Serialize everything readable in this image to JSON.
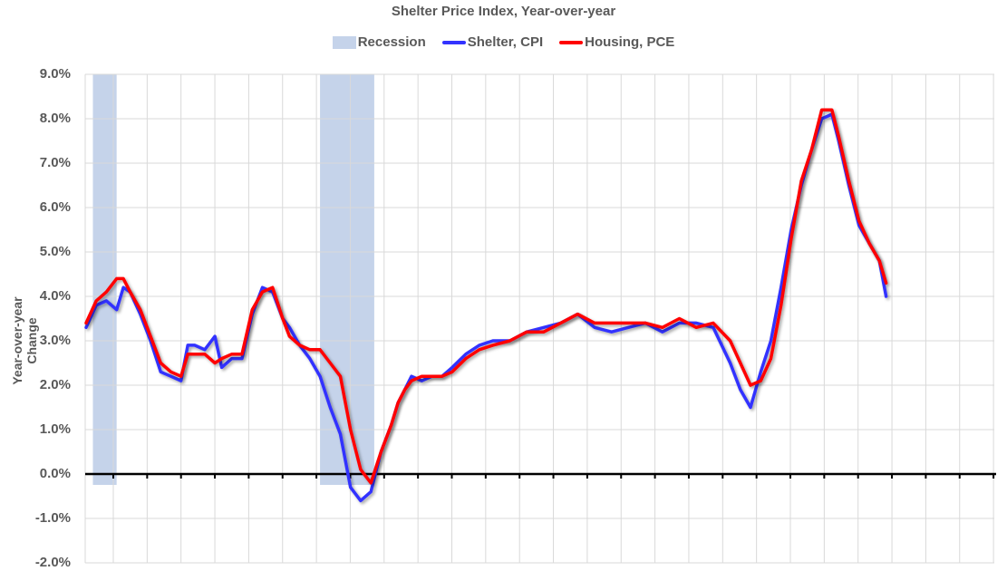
{
  "chart_data": {
    "type": "line",
    "title": "Shelter Price Index, Year-over-year",
    "xlabel": "",
    "ylabel": "Year-over-year Change",
    "ylim": [
      -2.0,
      9.0
    ],
    "yticks": [
      "9.0%",
      "8.0%",
      "7.0%",
      "6.0%",
      "5.0%",
      "4.0%",
      "3.0%",
      "2.0%",
      "1.0%",
      "0.0%",
      "-1.0%",
      "-2.0%"
    ],
    "grid": true,
    "legend_position": "top",
    "legend": [
      "Recession",
      "Shelter, CPI",
      "Housing, PCE"
    ],
    "x_unit": "approximate year (no x tick labels shown)",
    "recessions": [
      {
        "start": 2001.2,
        "end": 2001.9
      },
      {
        "start": 2007.9,
        "end": 2009.5
      }
    ],
    "series": [
      {
        "name": "Shelter, CPI",
        "color": "#3333ff",
        "x": [
          2001.0,
          2001.3,
          2001.6,
          2001.9,
          2002.1,
          2002.3,
          2002.6,
          2002.9,
          2003.2,
          2003.5,
          2003.8,
          2004.0,
          2004.2,
          2004.5,
          2004.8,
          2005.0,
          2005.3,
          2005.6,
          2005.9,
          2006.2,
          2006.5,
          2006.8,
          2007.0,
          2007.3,
          2007.6,
          2007.9,
          2008.2,
          2008.5,
          2008.8,
          2009.1,
          2009.4,
          2009.7,
          2010.0,
          2010.2,
          2010.4,
          2010.6,
          2010.9,
          2011.2,
          2011.5,
          2011.8,
          2012.2,
          2012.6,
          2013.0,
          2013.5,
          2014.0,
          2014.5,
          2015.0,
          2015.5,
          2016.0,
          2016.5,
          2017.0,
          2017.5,
          2018.0,
          2018.5,
          2019.0,
          2019.5,
          2020.0,
          2020.3,
          2020.6,
          2020.9,
          2021.2,
          2021.5,
          2021.8,
          2022.1,
          2022.4,
          2022.7,
          2023.0,
          2023.2,
          2023.5,
          2023.8,
          2024.1,
          2024.4,
          2024.6
        ],
        "values": [
          3.3,
          3.8,
          3.9,
          3.7,
          4.2,
          4.1,
          3.6,
          3.0,
          2.3,
          2.2,
          2.1,
          2.9,
          2.9,
          2.8,
          3.1,
          2.4,
          2.6,
          2.6,
          3.6,
          4.2,
          4.1,
          3.5,
          3.3,
          2.9,
          2.6,
          2.2,
          1.5,
          0.9,
          -0.3,
          -0.6,
          -0.4,
          0.5,
          1.1,
          1.6,
          1.9,
          2.2,
          2.1,
          2.2,
          2.2,
          2.4,
          2.7,
          2.9,
          3.0,
          3.0,
          3.2,
          3.3,
          3.4,
          3.6,
          3.3,
          3.2,
          3.3,
          3.4,
          3.2,
          3.4,
          3.4,
          3.3,
          2.5,
          1.9,
          1.5,
          2.3,
          3.0,
          4.2,
          5.5,
          6.5,
          7.3,
          8.0,
          8.1,
          7.5,
          6.5,
          5.6,
          5.2,
          4.8,
          4.0
        ]
      },
      {
        "name": "Housing, PCE",
        "color": "#ff0000",
        "x": [
          2001.0,
          2001.3,
          2001.6,
          2001.9,
          2002.1,
          2002.3,
          2002.6,
          2002.9,
          2003.2,
          2003.5,
          2003.8,
          2004.0,
          2004.2,
          2004.5,
          2004.8,
          2005.0,
          2005.3,
          2005.6,
          2005.9,
          2006.2,
          2006.5,
          2006.8,
          2007.0,
          2007.3,
          2007.6,
          2007.9,
          2008.2,
          2008.5,
          2008.8,
          2009.1,
          2009.4,
          2009.7,
          2010.0,
          2010.2,
          2010.4,
          2010.6,
          2010.9,
          2011.2,
          2011.5,
          2011.8,
          2012.2,
          2012.6,
          2013.0,
          2013.5,
          2014.0,
          2014.5,
          2015.0,
          2015.5,
          2016.0,
          2016.5,
          2017.0,
          2017.5,
          2018.0,
          2018.5,
          2019.0,
          2019.5,
          2020.0,
          2020.3,
          2020.6,
          2020.9,
          2021.2,
          2021.5,
          2021.8,
          2022.1,
          2022.4,
          2022.7,
          2023.0,
          2023.2,
          2023.5,
          2023.8,
          2024.1,
          2024.4,
          2024.6
        ],
        "values": [
          3.4,
          3.9,
          4.1,
          4.4,
          4.4,
          4.1,
          3.7,
          3.1,
          2.5,
          2.3,
          2.2,
          2.7,
          2.7,
          2.7,
          2.5,
          2.6,
          2.7,
          2.7,
          3.7,
          4.1,
          4.2,
          3.5,
          3.1,
          2.9,
          2.8,
          2.8,
          2.5,
          2.2,
          1.0,
          0.1,
          -0.2,
          0.5,
          1.1,
          1.6,
          1.9,
          2.1,
          2.2,
          2.2,
          2.2,
          2.3,
          2.6,
          2.8,
          2.9,
          3.0,
          3.2,
          3.2,
          3.4,
          3.6,
          3.4,
          3.4,
          3.4,
          3.4,
          3.3,
          3.5,
          3.3,
          3.4,
          3.0,
          2.5,
          2.0,
          2.1,
          2.6,
          3.8,
          5.3,
          6.6,
          7.3,
          8.2,
          8.2,
          7.6,
          6.6,
          5.7,
          5.2,
          4.8,
          4.3
        ]
      }
    ]
  }
}
